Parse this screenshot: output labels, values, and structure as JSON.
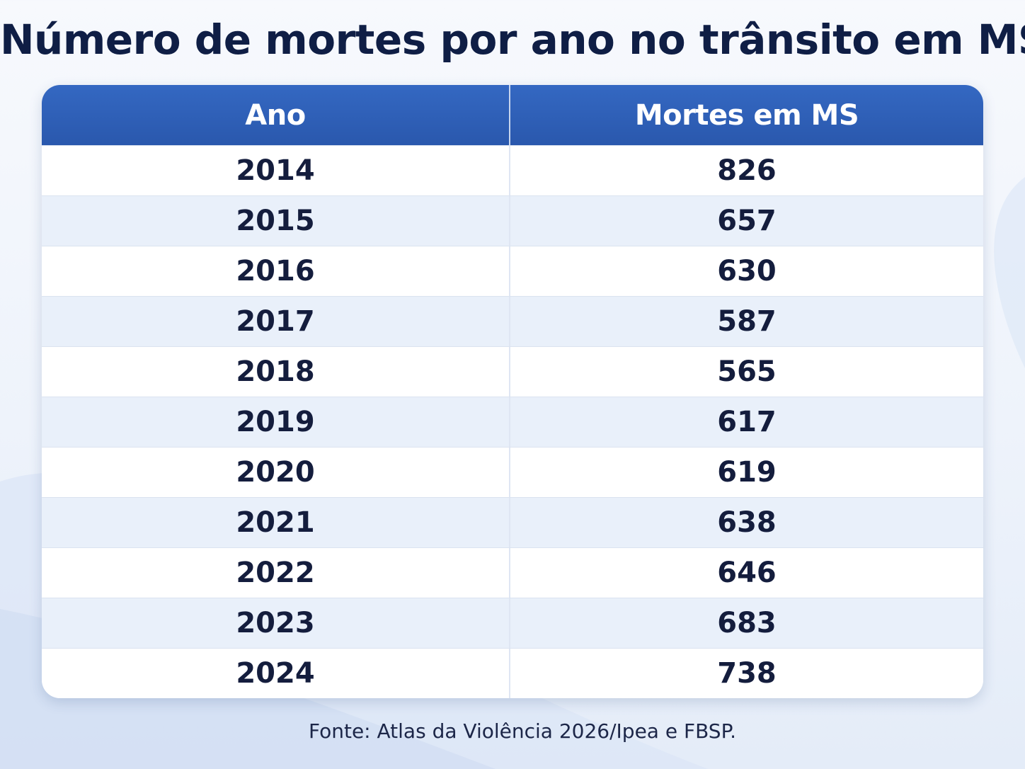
{
  "title": "Número de mortes por ano no trânsito em MS",
  "source": "Fonte: Atlas da Violência 2026/Ipea e FBSP.",
  "colors": {
    "header_bg": "#2f62b9",
    "header_text": "#ffffff",
    "row_alt_bg": "#e9f0fa",
    "text": "#141d3d",
    "title_text": "#0f1e45"
  },
  "chart_data": {
    "type": "table",
    "title": "Número de mortes por ano no trânsito em MS",
    "columns": [
      "Ano",
      "Mortes em MS"
    ],
    "rows": [
      [
        "2014",
        "826"
      ],
      [
        "2015",
        "657"
      ],
      [
        "2016",
        "630"
      ],
      [
        "2017",
        "587"
      ],
      [
        "2018",
        "565"
      ],
      [
        "2019",
        "617"
      ],
      [
        "2020",
        "619"
      ],
      [
        "2021",
        "638"
      ],
      [
        "2022",
        "646"
      ],
      [
        "2023",
        "683"
      ],
      [
        "2024",
        "738"
      ]
    ]
  }
}
